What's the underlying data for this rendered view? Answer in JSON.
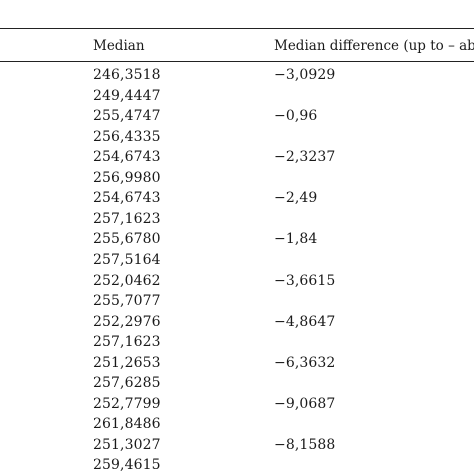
{
  "table": {
    "headers": {
      "median": "Median",
      "difference": "Median difference (up to – ab"
    },
    "medians": [
      "246,3518",
      "249,4447",
      "255,4747",
      "256,4335",
      "254,6743",
      "256,9980",
      "254,6743",
      "257,1623",
      "255,6780",
      "257,5164",
      "252,0462",
      "255,7077",
      "252,2976",
      "257,1623",
      "251,2653",
      "257,6285",
      "252,7799",
      "261,8486",
      "251,3027",
      "259,4615"
    ],
    "differences": [
      "−3,0929",
      "",
      "−0,96",
      "",
      "−2,3237",
      "",
      "−2,49",
      "",
      "−1,84",
      "",
      "−3,6615",
      "",
      "−4,8647",
      "",
      "−6,3632",
      "",
      "−9,0687",
      "",
      "−8,1588",
      ""
    ]
  }
}
